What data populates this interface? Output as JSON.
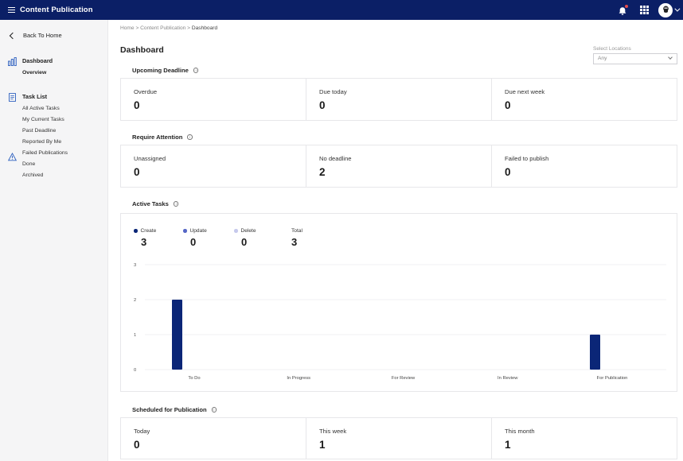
{
  "app": {
    "title": "Content Publication"
  },
  "sidebar": {
    "back_label": "Back To Home",
    "dashboard": {
      "label": "Dashboard",
      "items": [
        "Overview"
      ]
    },
    "task_list": {
      "label": "Task List",
      "items": [
        "All Active Tasks",
        "My Current Tasks",
        "Past Deadline",
        "Reported By Me",
        "Failed Publications",
        "Done",
        "Archived"
      ]
    }
  },
  "breadcrumb": {
    "home": "Home",
    "section": "Content Publication",
    "current": "Dashboard",
    "separator": ">"
  },
  "page": {
    "title": "Dashboard",
    "location": {
      "label": "Select Locations",
      "value": "Any"
    }
  },
  "upcoming": {
    "title": "Upcoming Deadline",
    "cells": [
      {
        "label": "Overdue",
        "value": "0"
      },
      {
        "label": "Due today",
        "value": "0"
      },
      {
        "label": "Due next week",
        "value": "0"
      }
    ]
  },
  "attention": {
    "title": "Require Attention",
    "cells": [
      {
        "label": "Unassigned",
        "value": "0"
      },
      {
        "label": "No deadline",
        "value": "2"
      },
      {
        "label": "Failed to publish",
        "value": "0"
      }
    ]
  },
  "active": {
    "title": "Active Tasks",
    "legend": [
      {
        "label": "Create",
        "value": "3",
        "color": "#0b2677"
      },
      {
        "label": "Update",
        "value": "0",
        "color": "#5566c6"
      },
      {
        "label": "Delete",
        "value": "0",
        "color": "#c6c9ec"
      },
      {
        "label": "Total",
        "value": "3"
      }
    ]
  },
  "scheduled": {
    "title": "Scheduled for Publication",
    "cells": [
      {
        "label": "Today",
        "value": "0"
      },
      {
        "label": "This week",
        "value": "1"
      },
      {
        "label": "This month",
        "value": "1"
      }
    ]
  },
  "chart_data": {
    "type": "bar",
    "categories": [
      "To Do",
      "In Progress",
      "For Review",
      "In Review",
      "For Publication"
    ],
    "series": [
      {
        "name": "Create",
        "values": [
          2,
          0,
          0,
          0,
          1
        ],
        "color": "#0b2677"
      }
    ],
    "ylim": [
      0,
      3
    ],
    "yticks": [
      0,
      1,
      2,
      3
    ],
    "grid": true
  },
  "colors": {
    "topbar": "#0b1f66",
    "accent": "#0b2677"
  }
}
